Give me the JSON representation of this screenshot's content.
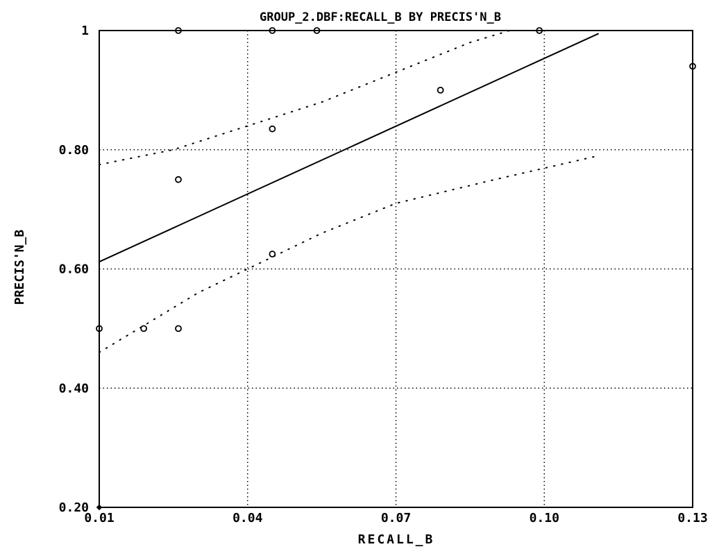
{
  "chart_data": {
    "type": "scatter",
    "title": "GROUP_2.DBF:RECALL_B BY PRECIS'N_B",
    "xlabel": "RECALL_B",
    "ylabel": "PRECIS'N_B",
    "xlim": [
      0.01,
      0.13
    ],
    "ylim": [
      0.2,
      1.0
    ],
    "x_ticks": [
      0.01,
      0.04,
      0.07,
      0.1,
      0.13
    ],
    "x_tick_labels": [
      "0.01",
      "0.04",
      "0.07",
      "0.10",
      "0.13"
    ],
    "y_ticks": [
      0.2,
      0.4,
      0.6,
      0.8,
      1.0
    ],
    "y_tick_labels": [
      "0.20",
      "0.40",
      "0.60",
      "0.80",
      "1"
    ],
    "grid": true,
    "points": [
      {
        "x": 0.01,
        "y": 0.5
      },
      {
        "x": 0.019,
        "y": 0.5
      },
      {
        "x": 0.026,
        "y": 0.5
      },
      {
        "x": 0.026,
        "y": 0.75
      },
      {
        "x": 0.026,
        "y": 1.0
      },
      {
        "x": 0.045,
        "y": 0.625
      },
      {
        "x": 0.045,
        "y": 0.835
      },
      {
        "x": 0.045,
        "y": 1.0
      },
      {
        "x": 0.054,
        "y": 1.0
      },
      {
        "x": 0.079,
        "y": 0.9
      },
      {
        "x": 0.099,
        "y": 1.0
      },
      {
        "x": 0.13,
        "y": 0.94
      }
    ],
    "regression_line": {
      "x": [
        0.01,
        0.111
      ],
      "y": [
        0.612,
        0.995
      ]
    },
    "upper_band": {
      "x": [
        0.01,
        0.025,
        0.04,
        0.055,
        0.07,
        0.085,
        0.093
      ],
      "y": [
        0.775,
        0.8,
        0.84,
        0.88,
        0.93,
        0.98,
        1.0
      ]
    },
    "lower_band": {
      "x": [
        0.01,
        0.02,
        0.03,
        0.04,
        0.055,
        0.07,
        0.09,
        0.111
      ],
      "y": [
        0.46,
        0.51,
        0.56,
        0.6,
        0.66,
        0.71,
        0.75,
        0.79
      ]
    }
  }
}
